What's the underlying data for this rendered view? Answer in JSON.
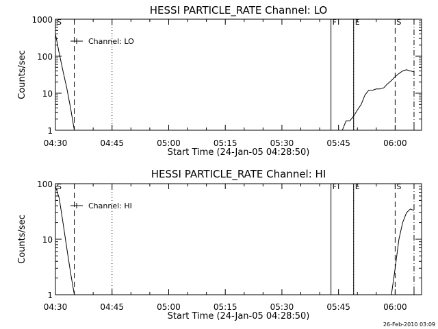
{
  "chart_data": [
    {
      "type": "line",
      "title": "HESSI PARTICLE_RATE Channel: LO",
      "xlabel": "Start Time (24-Jan-05 04:28:50)",
      "ylabel": "Counts/sec",
      "yscale": "log",
      "xlim": [
        "04:30",
        "06:07"
      ],
      "ylim": [
        1,
        1000
      ],
      "x_ticks": [
        "04:30",
        "04:45",
        "05:00",
        "05:15",
        "05:30",
        "05:45",
        "06:00"
      ],
      "y_ticks": [
        "1",
        "10",
        "100",
        "1000"
      ],
      "legend": "Channel: LO",
      "legend_position": "top-left",
      "grid": false,
      "series": [
        {
          "name": "Channel: LO",
          "segments": [
            [
              [
                "04:30",
                400
              ],
              [
                "04:31",
                120
              ],
              [
                "04:32",
                40
              ],
              [
                "04:33",
                14
              ],
              [
                "04:34",
                4
              ],
              [
                "04:35",
                1
              ]
            ],
            [
              [
                "05:46",
                1
              ],
              [
                "05:47",
                1.8
              ],
              [
                "05:48",
                1.8
              ],
              [
                "05:49",
                2.4
              ],
              [
                "05:50",
                3.5
              ],
              [
                "05:51",
                5
              ],
              [
                "05:52",
                9
              ],
              [
                "05:53",
                12
              ],
              [
                "05:54",
                12
              ],
              [
                "05:55",
                13
              ],
              [
                "05:56",
                13
              ],
              [
                "05:57",
                14
              ],
              [
                "05:58",
                18
              ],
              [
                "05:59",
                22
              ],
              [
                "06:00",
                28
              ],
              [
                "06:01",
                34
              ],
              [
                "06:02",
                40
              ],
              [
                "06:03",
                43
              ],
              [
                "06:04",
                40
              ],
              [
                "06:05",
                38
              ]
            ]
          ]
        }
      ],
      "event_markers": [
        {
          "label": "S",
          "time": "04:30",
          "style": "solid"
        },
        {
          "label": "",
          "time": "04:35",
          "style": "dashed"
        },
        {
          "label": "",
          "time": "04:45",
          "style": "dotted"
        },
        {
          "label": "F",
          "time": "05:43",
          "style": "solid"
        },
        {
          "label": "",
          "time": "05:49",
          "style": "solid"
        },
        {
          "label": "E",
          "time": "05:49",
          "style": "dotted"
        },
        {
          "label": "S",
          "time": "06:00",
          "style": "dashed"
        },
        {
          "label": "",
          "time": "06:05",
          "style": "dashdot"
        }
      ]
    },
    {
      "type": "line",
      "title": "HESSI PARTICLE_RATE Channel: HI",
      "xlabel": "Start Time (24-Jan-05 04:28:50)",
      "ylabel": "Counts/sec",
      "yscale": "log",
      "xlim": [
        "04:30",
        "06:07"
      ],
      "ylim": [
        1,
        100
      ],
      "x_ticks": [
        "04:30",
        "04:45",
        "05:00",
        "05:15",
        "05:30",
        "05:45",
        "06:00"
      ],
      "y_ticks": [
        "1",
        "10",
        "100"
      ],
      "legend": "Channel: HI",
      "legend_position": "top-left",
      "grid": false,
      "series": [
        {
          "name": "Channel: HI",
          "segments": [
            [
              [
                "04:30",
                90
              ],
              [
                "04:31",
                55
              ],
              [
                "04:32",
                20
              ],
              [
                "04:33",
                7
              ],
              [
                "04:34",
                2.5
              ],
              [
                "04:35",
                1
              ]
            ],
            [
              [
                "05:59",
                1
              ],
              [
                "06:00",
                3
              ],
              [
                "06:01",
                10
              ],
              [
                "06:02",
                20
              ],
              [
                "06:03",
                30
              ],
              [
                "06:04",
                35
              ],
              [
                "06:05",
                33
              ]
            ]
          ]
        }
      ],
      "event_markers": [
        {
          "label": "S",
          "time": "04:30",
          "style": "solid"
        },
        {
          "label": "",
          "time": "04:35",
          "style": "dashed"
        },
        {
          "label": "",
          "time": "04:45",
          "style": "dotted"
        },
        {
          "label": "F",
          "time": "05:43",
          "style": "solid"
        },
        {
          "label": "",
          "time": "05:49",
          "style": "solid"
        },
        {
          "label": "E",
          "time": "05:49",
          "style": "dotted"
        },
        {
          "label": "S",
          "time": "06:00",
          "style": "dashed"
        },
        {
          "label": "",
          "time": "06:05",
          "style": "dashdot"
        }
      ]
    }
  ],
  "footer": {
    "timestamp": "26-Feb-2010 03:09"
  }
}
